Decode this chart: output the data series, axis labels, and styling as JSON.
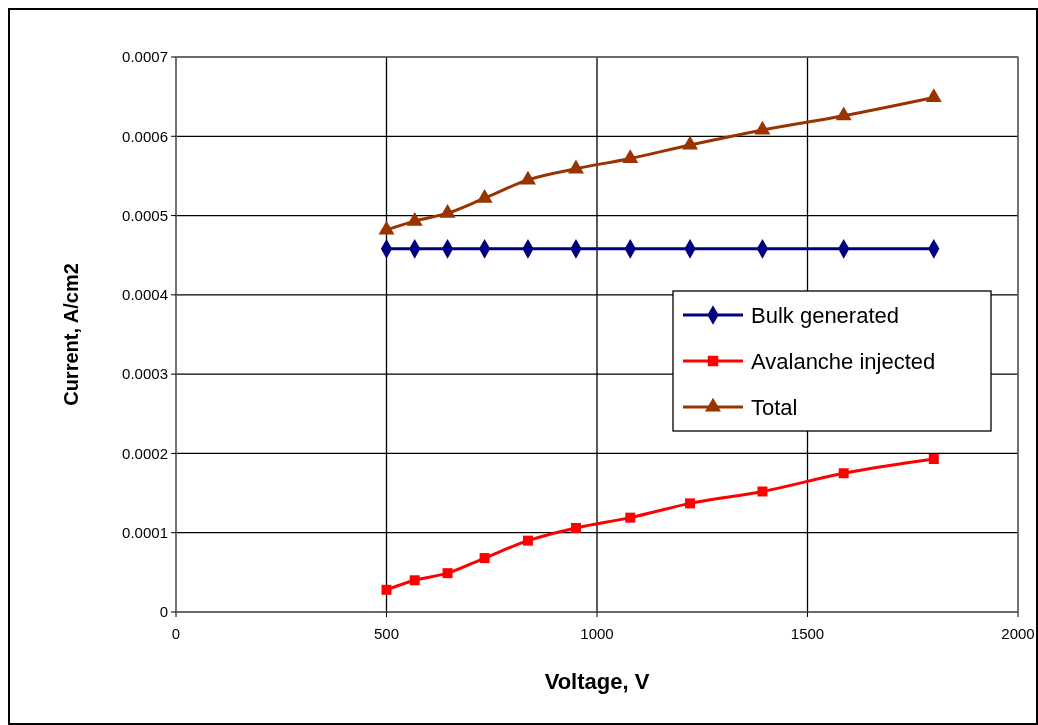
{
  "chart_data": {
    "type": "line",
    "xlabel": "Voltage, V",
    "ylabel": "Current, A/cm2",
    "x": [
      500,
      567,
      645,
      733,
      836,
      950,
      1079,
      1221,
      1393,
      1586,
      1800
    ],
    "series": [
      {
        "name": "Bulk generated",
        "color": "#000080",
        "marker": "diamond",
        "values": [
          0.000458,
          0.000458,
          0.000458,
          0.000458,
          0.000458,
          0.000458,
          0.000458,
          0.000458,
          0.000458,
          0.000458,
          0.000458
        ]
      },
      {
        "name": "Avalanche injected",
        "color": "#ff0000",
        "marker": "square",
        "values": [
          2.8e-05,
          4e-05,
          4.9e-05,
          6.8e-05,
          9e-05,
          0.000106,
          0.000119,
          0.000137,
          0.000152,
          0.000175,
          0.000193
        ]
      },
      {
        "name": "Total",
        "color": "#993300",
        "marker": "triangle",
        "values": [
          0.000482,
          0.000493,
          0.000503,
          0.000522,
          0.000545,
          0.000559,
          0.000572,
          0.000589,
          0.000608,
          0.000626,
          0.000649
        ]
      }
    ],
    "xlim": [
      0,
      2000
    ],
    "xticks": [
      0,
      500,
      1000,
      1500,
      2000
    ],
    "ylim": [
      0,
      0.0007
    ],
    "yticks": [
      0,
      0.0001,
      0.0002,
      0.0003,
      0.0004,
      0.0005,
      0.0006,
      0.0007
    ],
    "grid": true,
    "legend": "right"
  }
}
